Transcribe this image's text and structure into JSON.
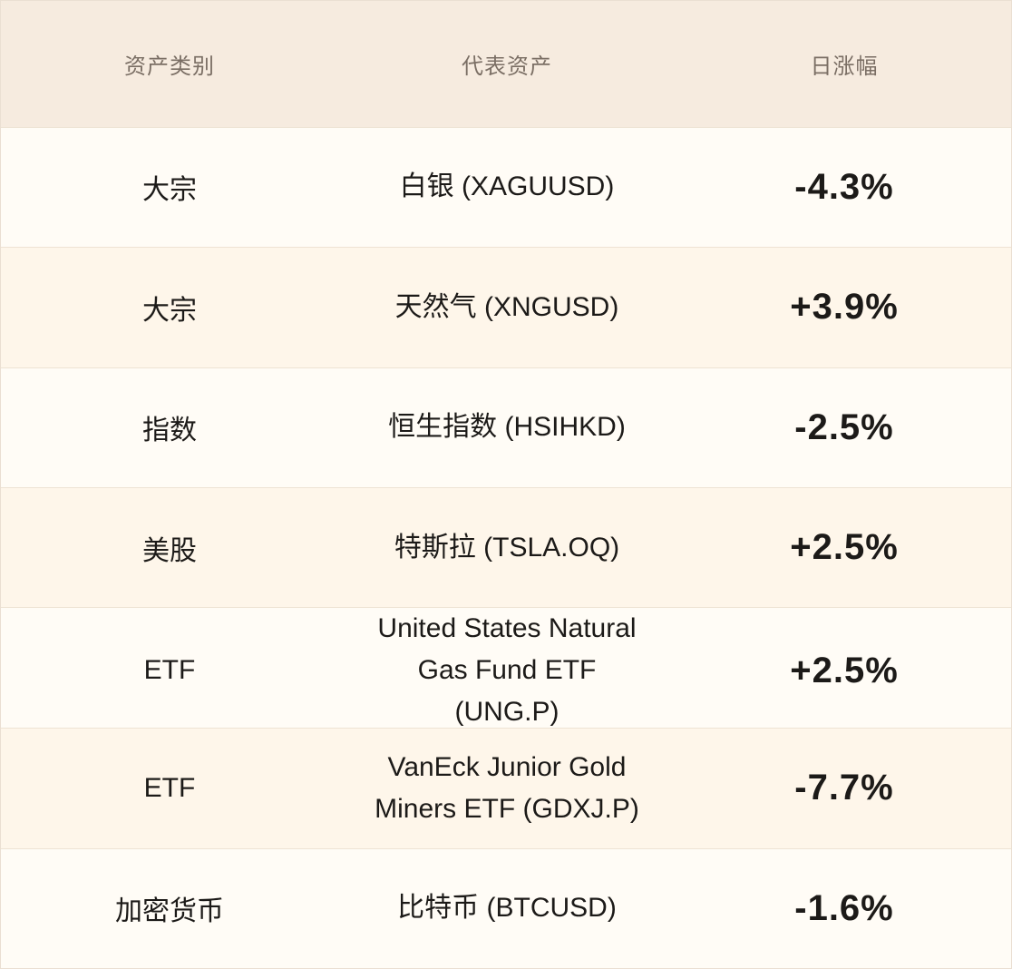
{
  "table": {
    "headers": {
      "category": "资产类别",
      "asset": "代表资产",
      "change": "日涨幅"
    },
    "rows": [
      {
        "category": "大宗",
        "asset": "白银 (XAGUUSD)",
        "change": "-4.3%"
      },
      {
        "category": "大宗",
        "asset": "天然气 (XNGUSD)",
        "change": "+3.9%"
      },
      {
        "category": "指数",
        "asset": "恒生指数 (HSIHKD)",
        "change": "-2.5%"
      },
      {
        "category": "美股",
        "asset": "特斯拉 (TSLA.OQ)",
        "change": "+2.5%"
      },
      {
        "category": "ETF",
        "asset": "United States Natural Gas Fund ETF (UNG.P)",
        "change": "+2.5%"
      },
      {
        "category": "ETF",
        "asset": "VanEck Junior Gold Miners ETF (GDXJ.P)",
        "change": "-7.7%"
      },
      {
        "category": "加密货币",
        "asset": "比特币 (BTCUSD)",
        "change": "-1.6%"
      }
    ]
  },
  "colors": {
    "header_bg": "#f6ebdf",
    "row_bg_light": "#fffcf6",
    "row_bg_tinted": "#fef6ea",
    "header_text": "#7a6e64",
    "body_text": "#1c1a18"
  }
}
